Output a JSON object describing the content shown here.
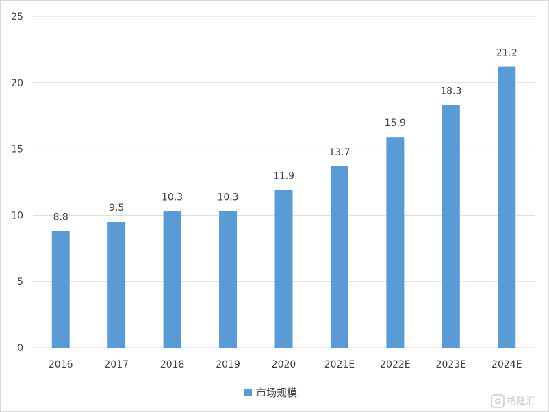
{
  "chart_data": {
    "type": "bar",
    "categories": [
      "2016",
      "2017",
      "2018",
      "2019",
      "2020",
      "2021E",
      "2022E",
      "2023E",
      "2024E"
    ],
    "series": [
      {
        "name": "市场规模",
        "values": [
          8.8,
          9.5,
          10.3,
          10.3,
          11.9,
          13.7,
          15.9,
          18.3,
          21.2
        ]
      }
    ],
    "data_labels": [
      "8.8",
      "9.5",
      "10.3",
      "10.3",
      "11.9",
      "13.7",
      "15.9",
      "18.3",
      "21.2"
    ],
    "ylim": [
      0,
      25
    ],
    "yticks": [
      "0",
      "5",
      "10",
      "15",
      "20",
      "25"
    ],
    "title": "",
    "xlabel": "",
    "ylabel": "",
    "grid": true,
    "legend_position": "bottom",
    "colors": {
      "bar": "#5b9bd5",
      "grid": "#d9d9d9",
      "text": "#404040"
    }
  },
  "watermark": {
    "text": "格隆汇",
    "icon": "glh-logo-icon"
  }
}
